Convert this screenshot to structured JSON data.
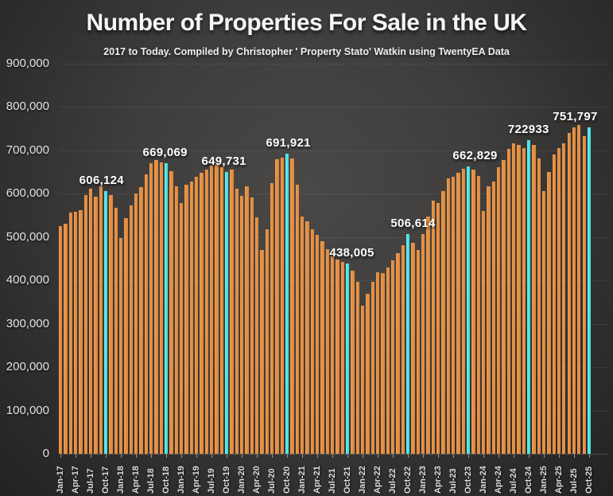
{
  "title": "Number of Properties For Sale in the UK",
  "subtitle": "2017 to Today. Compiled by Christopher ' Property Stato' Watkin using TwentyEA Data",
  "colors": {
    "bar": "#E08E44",
    "highlight_bar": "#4FE5E9",
    "background": "#3E3C3A",
    "text": "#F2F2F2"
  },
  "chart_data": {
    "type": "bar",
    "title": "Number of Properties For Sale in the UK",
    "subtitle": "2017 to Today. Compiled by Christopher ' Property Stato' Watkin using TwentyEA Data",
    "xlabel": "",
    "ylabel": "",
    "ylim": [
      0,
      900000
    ],
    "grid": "horizontal-faint",
    "legend": "none",
    "x_start_month": "Jan-17",
    "x_end_month": "Oct-25",
    "x_tick_labels": [
      "Jan-17",
      "Apr-17",
      "Jul-17",
      "Oct-17",
      "Jan-18",
      "Apr-18",
      "Jul-18",
      "Oct-18",
      "Jan-19",
      "Apr-19",
      "Jul-19",
      "Oct-19",
      "Jan-20",
      "Apr-20",
      "Jul-20",
      "Oct-20",
      "Jan-21",
      "Apr-21",
      "Jul-21",
      "Oct-21",
      "Jan-22",
      "Apr-22",
      "Jul-22",
      "Oct-22",
      "Jan-23",
      "Apr-23",
      "Jul-23",
      "Oct-23",
      "Jan-24",
      "Apr-24",
      "Jul-24",
      "Oct-24",
      "Jan-25",
      "Apr-25",
      "Jul-25",
      "Oct-25"
    ],
    "y_tick_labels": [
      "0",
      "100,000",
      "200,000",
      "300,000",
      "400,000",
      "500,000",
      "600,000",
      "700,000",
      "800,000",
      "900,000"
    ],
    "values": [
      525000,
      531000,
      556000,
      558000,
      561000,
      596000,
      611000,
      592000,
      617000,
      606124,
      596000,
      567000,
      498000,
      543000,
      572000,
      601000,
      614000,
      645000,
      670000,
      678000,
      671000,
      669069,
      652000,
      616000,
      578000,
      620000,
      628000,
      638000,
      648000,
      655000,
      664000,
      666000,
      660000,
      649731,
      655000,
      612000,
      595000,
      616000,
      590000,
      545000,
      469000,
      517000,
      624000,
      679000,
      683000,
      691921,
      681000,
      620000,
      547000,
      536000,
      518000,
      505000,
      490000,
      472000,
      455000,
      448000,
      442000,
      438005,
      422000,
      396000,
      342000,
      368000,
      396000,
      418000,
      416000,
      430000,
      446000,
      462000,
      480000,
      506614,
      487000,
      469000,
      506000,
      547000,
      584000,
      578000,
      606000,
      635000,
      639000,
      647000,
      657000,
      662829,
      655000,
      640000,
      560000,
      616000,
      628000,
      660000,
      678000,
      702000,
      715000,
      712000,
      705000,
      722933,
      712000,
      680000,
      605000,
      650000,
      690000,
      705000,
      715000,
      740000,
      752000,
      757000,
      733000,
      751797
    ],
    "highlighted_indices": [
      9,
      21,
      33,
      45,
      57,
      69,
      81,
      93,
      105
    ],
    "highlight_meaning": "October of each year shown in cyan with data label",
    "bar_labels": [
      {
        "index": 9,
        "text": "606,124",
        "dx": -14
      },
      {
        "index": 21,
        "text": "669,069",
        "dx": -10
      },
      {
        "index": 33,
        "text": "649,731",
        "dx": -12
      },
      {
        "index": 45,
        "text": "691,921",
        "dx": -7
      },
      {
        "index": 57,
        "text": "438,005",
        "dx": -3
      },
      {
        "index": 69,
        "text": "506,614",
        "dx": -2
      },
      {
        "index": 81,
        "text": "662,829",
        "dx": 0
      },
      {
        "index": 93,
        "text": "722933",
        "dx": -8
      },
      {
        "index": 105,
        "text": "751,797",
        "dx": -26
      }
    ]
  }
}
